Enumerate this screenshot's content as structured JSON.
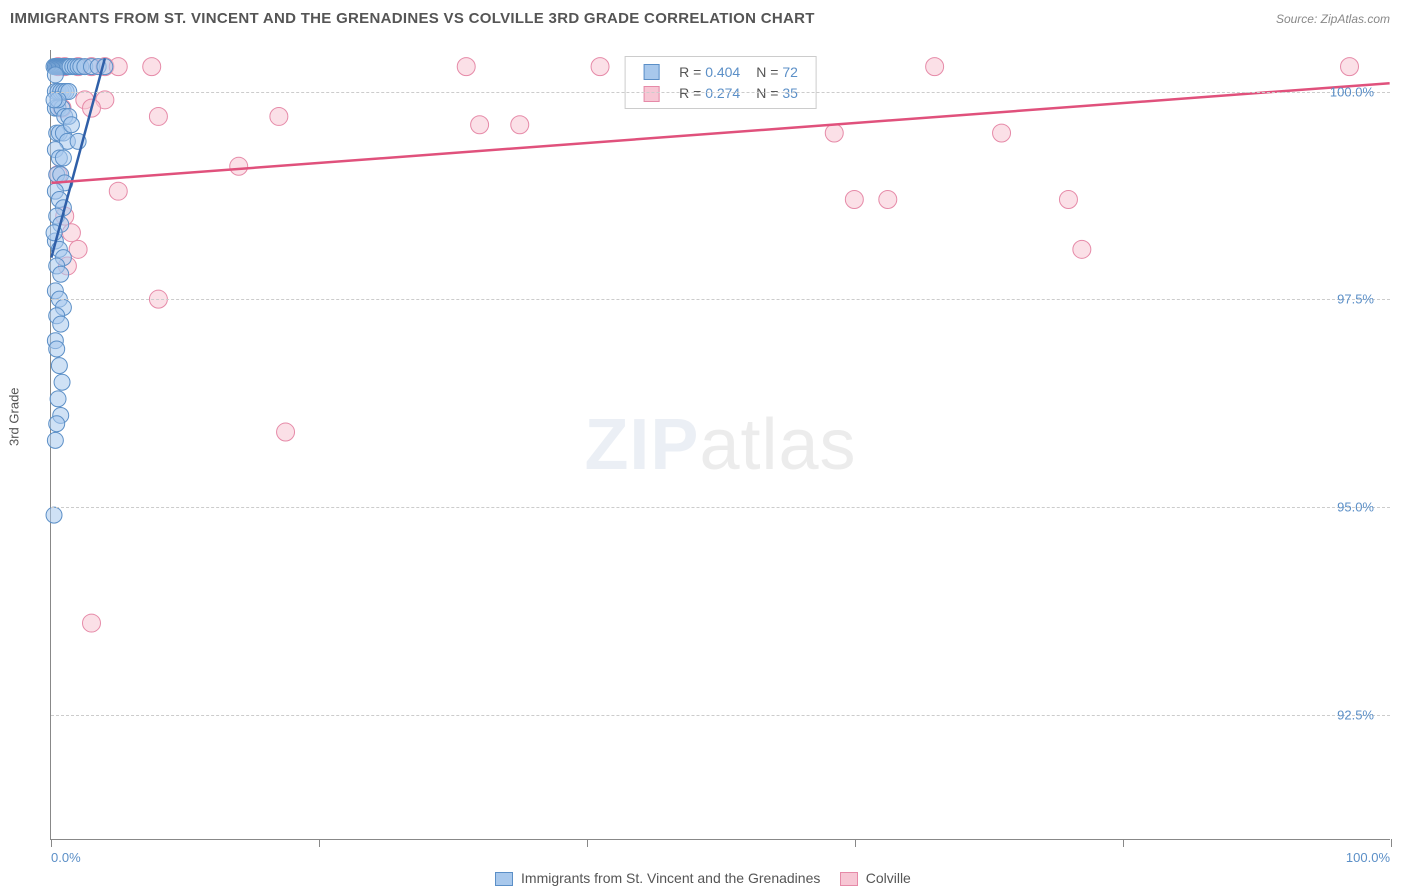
{
  "title": "IMMIGRANTS FROM ST. VINCENT AND THE GRENADINES VS COLVILLE 3RD GRADE CORRELATION CHART",
  "source": "Source: ZipAtlas.com",
  "y_axis_title": "3rd Grade",
  "watermark_bold": "ZIP",
  "watermark_light": "atlas",
  "plot": {
    "x_min": 0.0,
    "x_max": 100.0,
    "y_min": 91.0,
    "y_max": 100.5,
    "x_ticks": [
      0.0,
      20.0,
      40.0,
      60.0,
      80.0,
      100.0
    ],
    "x_tick_labels": {
      "0": "0.0%",
      "100": "100.0%"
    },
    "y_gridlines": [
      92.5,
      95.0,
      97.5,
      100.0
    ],
    "y_tick_labels": {
      "92.5": "92.5%",
      "95.0": "95.0%",
      "97.5": "97.5%",
      "100.0": "100.0%"
    }
  },
  "series": [
    {
      "key": "svg",
      "name": "Immigrants from St. Vincent and the Grenadines",
      "color_fill": "#a8c8ec",
      "color_stroke": "#5b8fc7",
      "fill_opacity": 0.55,
      "R": "0.404",
      "N": "72",
      "marker_radius": 8,
      "trend": {
        "x1": 0.0,
        "y1": 98.0,
        "x2": 4.0,
        "y2": 100.4,
        "stroke": "#2f5fa8",
        "width": 2.5
      },
      "points": [
        [
          0.2,
          100.3
        ],
        [
          0.3,
          100.3
        ],
        [
          0.4,
          100.3
        ],
        [
          0.5,
          100.3
        ],
        [
          0.6,
          100.3
        ],
        [
          0.7,
          100.3
        ],
        [
          0.8,
          100.3
        ],
        [
          0.9,
          100.3
        ],
        [
          1.0,
          100.3
        ],
        [
          1.1,
          100.3
        ],
        [
          1.2,
          100.3
        ],
        [
          1.3,
          100.3
        ],
        [
          1.4,
          100.3
        ],
        [
          1.6,
          100.3
        ],
        [
          1.8,
          100.3
        ],
        [
          2.0,
          100.3
        ],
        [
          2.2,
          100.3
        ],
        [
          2.5,
          100.3
        ],
        [
          3.0,
          100.3
        ],
        [
          3.5,
          100.3
        ],
        [
          4.0,
          100.3
        ],
        [
          0.3,
          100.0
        ],
        [
          0.5,
          100.0
        ],
        [
          0.7,
          100.0
        ],
        [
          0.9,
          100.0
        ],
        [
          1.1,
          100.0
        ],
        [
          1.3,
          100.0
        ],
        [
          0.3,
          99.8
        ],
        [
          0.5,
          99.8
        ],
        [
          0.8,
          99.8
        ],
        [
          1.0,
          99.7
        ],
        [
          1.3,
          99.7
        ],
        [
          0.4,
          99.5
        ],
        [
          0.6,
          99.5
        ],
        [
          0.9,
          99.5
        ],
        [
          1.2,
          99.4
        ],
        [
          0.3,
          99.3
        ],
        [
          0.6,
          99.2
        ],
        [
          0.9,
          99.2
        ],
        [
          0.4,
          99.0
        ],
        [
          0.7,
          99.0
        ],
        [
          1.0,
          98.9
        ],
        [
          0.3,
          98.8
        ],
        [
          0.6,
          98.7
        ],
        [
          0.9,
          98.6
        ],
        [
          0.4,
          98.5
        ],
        [
          0.7,
          98.4
        ],
        [
          0.3,
          98.2
        ],
        [
          0.6,
          98.1
        ],
        [
          0.9,
          98.0
        ],
        [
          0.4,
          97.9
        ],
        [
          0.7,
          97.8
        ],
        [
          0.3,
          97.6
        ],
        [
          0.6,
          97.5
        ],
        [
          0.9,
          97.4
        ],
        [
          0.4,
          97.3
        ],
        [
          0.7,
          97.2
        ],
        [
          0.3,
          97.0
        ],
        [
          0.4,
          96.9
        ],
        [
          0.6,
          96.7
        ],
        [
          0.8,
          96.5
        ],
        [
          0.5,
          96.3
        ],
        [
          0.7,
          96.1
        ],
        [
          0.4,
          96.0
        ],
        [
          0.3,
          95.8
        ],
        [
          0.2,
          94.9
        ],
        [
          0.3,
          100.2
        ],
        [
          0.5,
          99.9
        ],
        [
          1.5,
          99.6
        ],
        [
          2.0,
          99.4
        ],
        [
          0.2,
          99.9
        ],
        [
          0.2,
          98.3
        ]
      ]
    },
    {
      "key": "colville",
      "name": "Colville",
      "color_fill": "#f7c6d4",
      "color_stroke": "#e68aa8",
      "fill_opacity": 0.55,
      "R": "0.274",
      "N": "35",
      "marker_radius": 9,
      "trend": {
        "x1": 0.0,
        "y1": 98.9,
        "x2": 100.0,
        "y2": 100.1,
        "stroke": "#e0517c",
        "width": 2.5
      },
      "points": [
        [
          0.5,
          100.3
        ],
        [
          1.0,
          100.3
        ],
        [
          2.0,
          100.3
        ],
        [
          3.0,
          100.3
        ],
        [
          4.0,
          100.3
        ],
        [
          5.0,
          100.3
        ],
        [
          7.5,
          100.3
        ],
        [
          31.0,
          100.3
        ],
        [
          41.0,
          100.3
        ],
        [
          66.0,
          100.3
        ],
        [
          97.0,
          100.3
        ],
        [
          2.5,
          99.9
        ],
        [
          4.0,
          99.9
        ],
        [
          0.8,
          99.8
        ],
        [
          3.0,
          99.8
        ],
        [
          17.0,
          99.7
        ],
        [
          8.0,
          99.7
        ],
        [
          32.0,
          99.6
        ],
        [
          35.0,
          99.6
        ],
        [
          58.5,
          99.5
        ],
        [
          71.0,
          99.5
        ],
        [
          14.0,
          99.1
        ],
        [
          5.0,
          98.8
        ],
        [
          1.0,
          98.5
        ],
        [
          60.0,
          98.7
        ],
        [
          62.5,
          98.7
        ],
        [
          76.0,
          98.7
        ],
        [
          1.5,
          98.3
        ],
        [
          2.0,
          98.1
        ],
        [
          77.0,
          98.1
        ],
        [
          8.0,
          97.5
        ],
        [
          17.5,
          95.9
        ],
        [
          3.0,
          93.6
        ],
        [
          0.5,
          99.0
        ],
        [
          1.2,
          97.9
        ]
      ]
    }
  ],
  "legend_labels": {
    "R": "R =",
    "N": "N ="
  }
}
